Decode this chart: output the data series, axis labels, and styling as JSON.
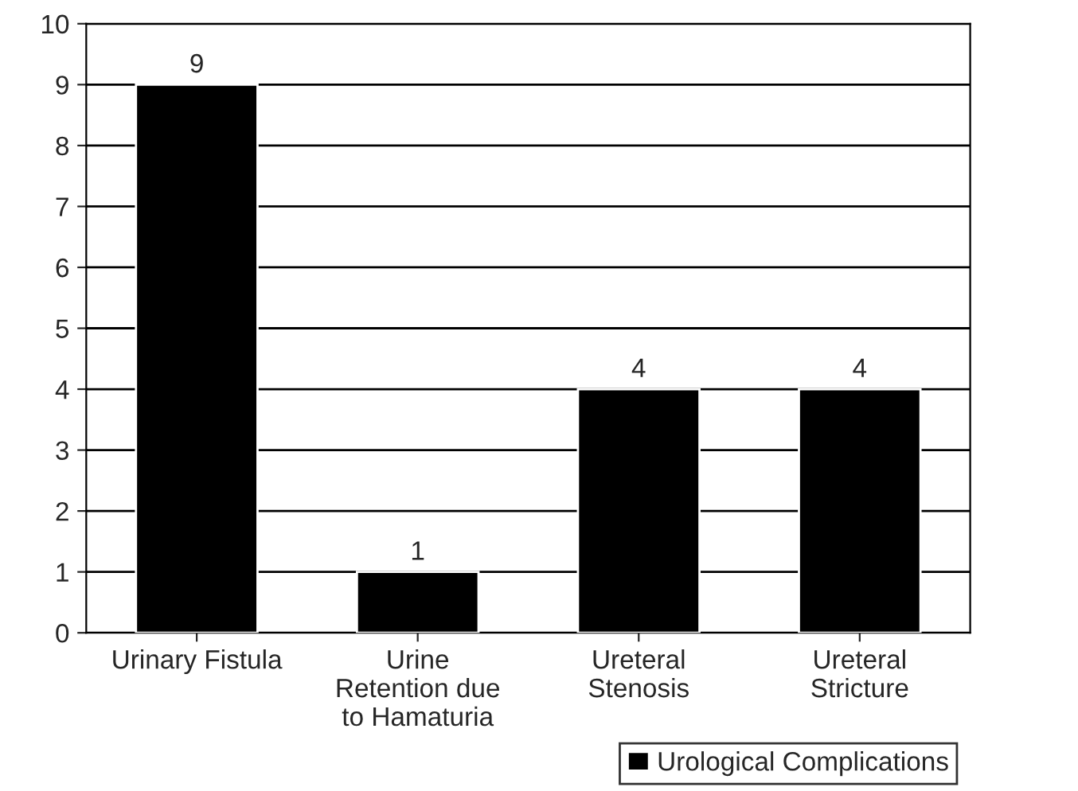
{
  "chart_data": {
    "type": "bar",
    "categories": [
      "Urinary Fistula",
      "Urine\nRetention due\nto Hamaturia",
      "Ureteral\nStenosis",
      "Ureteral\nStricture"
    ],
    "series": [
      {
        "name": "Urological Complications",
        "color": "#000000",
        "values": [
          9,
          1,
          4,
          4
        ]
      }
    ],
    "ylim": [
      0,
      10
    ],
    "yticks": [
      0,
      1,
      2,
      3,
      4,
      5,
      6,
      7,
      8,
      9,
      10
    ],
    "grid": "y",
    "legend": "bottom right",
    "data_labels": true
  }
}
